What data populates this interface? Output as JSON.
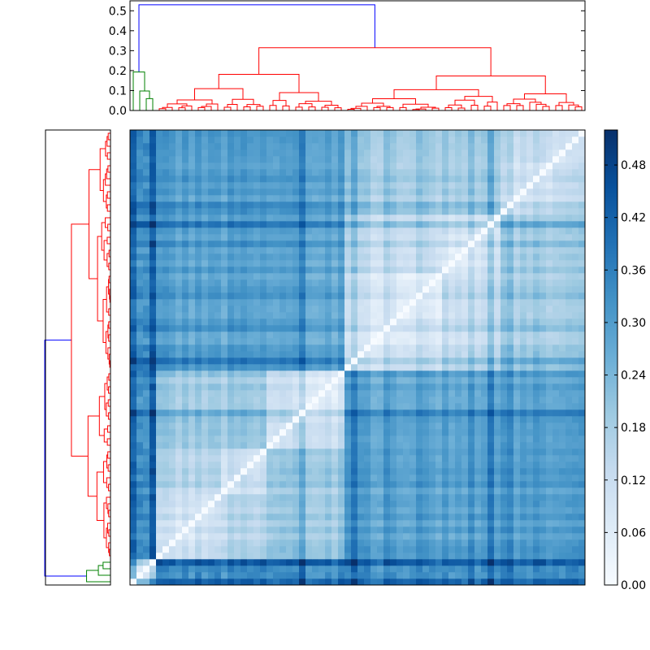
{
  "chart_data": {
    "type": "heatmap",
    "title": "",
    "xlabel": "",
    "ylabel": "",
    "dendrogram_top": {
      "ylim": [
        0,
        0.55
      ],
      "yticks": [
        "0.0",
        "0.1",
        "0.2",
        "0.3",
        "0.4",
        "0.5"
      ],
      "root_height": 0.53,
      "cluster_colors": [
        "#0000ff",
        "#008000",
        "#ff0000"
      ]
    },
    "dendrogram_left": {
      "root_height": 0.53,
      "cluster_colors": [
        "#0000ff",
        "#008000",
        "#ff0000"
      ]
    },
    "colorbar": {
      "vmin": 0.0,
      "vmax": 0.52,
      "ticks": [
        "0.00",
        "0.06",
        "0.12",
        "0.18",
        "0.24",
        "0.30",
        "0.36",
        "0.42",
        "0.48"
      ],
      "colormap": "Blues"
    },
    "matrix": {
      "n": 70,
      "diagonal_value": 0.0,
      "green_cluster_size": 4,
      "typical_red_distance": 0.1,
      "max_distance": 0.52
    }
  }
}
